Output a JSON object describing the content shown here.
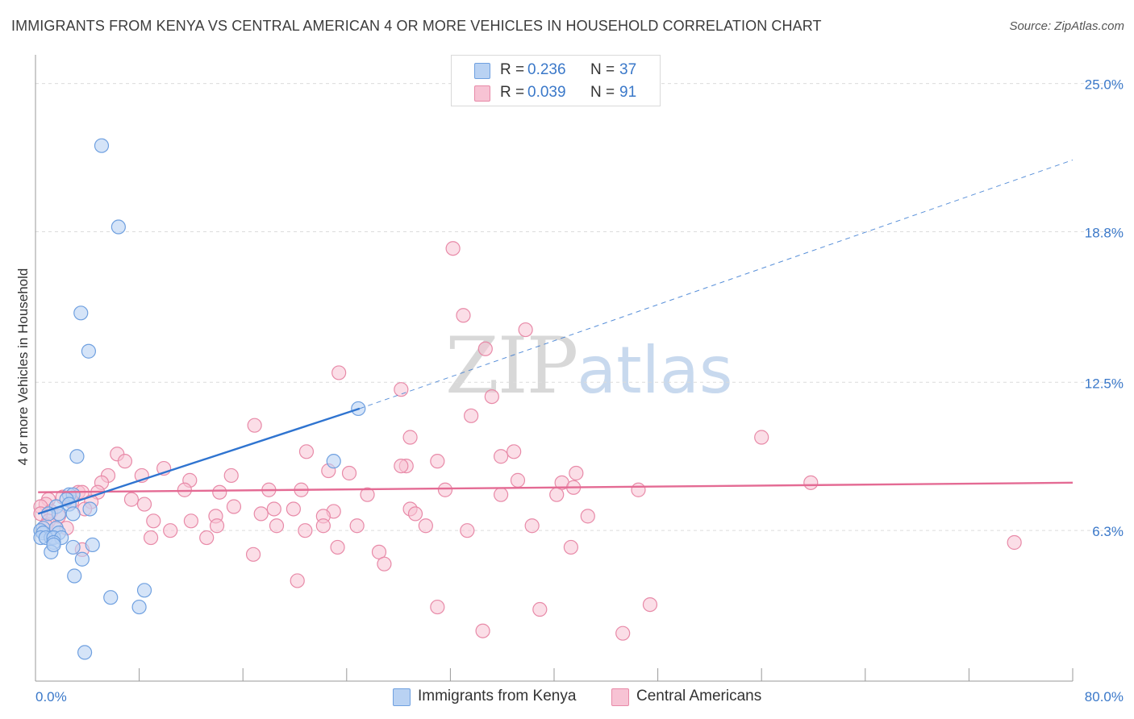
{
  "title": "IMMIGRANTS FROM KENYA VS CENTRAL AMERICAN 4 OR MORE VEHICLES IN HOUSEHOLD CORRELATION CHART",
  "source": "Source: ZipAtlas.com",
  "watermark": {
    "zip": "ZIP",
    "atlas": "atlas"
  },
  "colors": {
    "blue": "#6fa0e0",
    "blue_fill": "#b9d2f3",
    "blue_line": "#2f74d0",
    "pink": "#e88aa8",
    "pink_fill": "#f7c3d4",
    "pink_line": "#e46b94",
    "tick_label": "#3a78c9",
    "grid": "#dcdcdc"
  },
  "stats": [
    {
      "r_label": "R =",
      "r_value": "0.236",
      "n_label": "N =",
      "n_value": "37"
    },
    {
      "r_label": "R =",
      "r_value": "0.039",
      "n_label": "N =",
      "n_value": "91"
    }
  ],
  "legend": {
    "placement": "bottom-center",
    "items": [
      "Immigrants from Kenya",
      "Central Americans"
    ]
  },
  "chart_data": {
    "type": "scatter",
    "title": "IMMIGRANTS FROM KENYA VS CENTRAL AMERICAN 4 OR MORE VEHICLES IN HOUSEHOLD CORRELATION CHART",
    "xlabel": "",
    "ylabel": "4 or more Vehicles in Household",
    "xlim": [
      0,
      80
    ],
    "ylim": [
      0,
      26.2
    ],
    "x_tick_labels": [
      "0.0%",
      "80.0%"
    ],
    "y_ticks": [
      6.3,
      12.5,
      18.8,
      25.0
    ],
    "y_tick_labels": [
      "6.3%",
      "12.5%",
      "18.8%",
      "25.0%"
    ],
    "grid": true,
    "series": [
      {
        "name": "Immigrants from Kenya",
        "color": "#6fa0e0",
        "trend": {
          "x0": 0.2,
          "y0": 7.0,
          "x1": 25.0,
          "y1": 11.4,
          "dashed_to_x": 80.0,
          "dashed_to_y": 21.8
        },
        "points": [
          [
            5.1,
            22.4
          ],
          [
            6.4,
            19.0
          ],
          [
            3.5,
            15.4
          ],
          [
            4.1,
            13.8
          ],
          [
            24.9,
            11.4
          ],
          [
            3.2,
            9.4
          ],
          [
            23.0,
            9.2
          ],
          [
            2.6,
            7.8
          ],
          [
            2.9,
            7.8
          ],
          [
            2.4,
            7.6
          ],
          [
            2.6,
            7.4
          ],
          [
            1.6,
            7.3
          ],
          [
            4.2,
            7.2
          ],
          [
            1.8,
            7.0
          ],
          [
            2.9,
            7.0
          ],
          [
            1.0,
            7.0
          ],
          [
            0.6,
            6.4
          ],
          [
            0.4,
            6.3
          ],
          [
            1.6,
            6.4
          ],
          [
            1.8,
            6.2
          ],
          [
            0.6,
            6.2
          ],
          [
            0.4,
            6.0
          ],
          [
            1.2,
            6.0
          ],
          [
            0.8,
            6.0
          ],
          [
            1.4,
            6.0
          ],
          [
            2.0,
            6.0
          ],
          [
            1.4,
            5.8
          ],
          [
            4.4,
            5.7
          ],
          [
            2.9,
            5.6
          ],
          [
            1.2,
            5.4
          ],
          [
            3.6,
            5.1
          ],
          [
            3.0,
            4.4
          ],
          [
            8.4,
            3.8
          ],
          [
            5.8,
            3.5
          ],
          [
            8.0,
            3.1
          ],
          [
            3.8,
            1.2
          ],
          [
            1.4,
            5.7
          ]
        ]
      },
      {
        "name": "Central Americans",
        "color": "#e88aa8",
        "trend": {
          "x0": 0.2,
          "y0": 7.9,
          "x1": 80.0,
          "y1": 8.3
        },
        "points": [
          [
            32.2,
            18.1
          ],
          [
            33.0,
            15.3
          ],
          [
            37.8,
            14.7
          ],
          [
            34.7,
            13.9
          ],
          [
            23.4,
            12.9
          ],
          [
            28.2,
            12.2
          ],
          [
            35.2,
            11.9
          ],
          [
            33.6,
            11.1
          ],
          [
            16.9,
            10.7
          ],
          [
            28.9,
            10.2
          ],
          [
            56.0,
            10.2
          ],
          [
            36.9,
            9.6
          ],
          [
            6.3,
            9.5
          ],
          [
            20.9,
            9.6
          ],
          [
            35.9,
            9.4
          ],
          [
            31.0,
            9.2
          ],
          [
            6.9,
            9.2
          ],
          [
            28.6,
            9.0
          ],
          [
            28.2,
            9.0
          ],
          [
            9.9,
            8.9
          ],
          [
            22.6,
            8.8
          ],
          [
            41.7,
            8.7
          ],
          [
            24.2,
            8.7
          ],
          [
            5.6,
            8.6
          ],
          [
            8.2,
            8.6
          ],
          [
            15.1,
            8.6
          ],
          [
            11.9,
            8.4
          ],
          [
            37.2,
            8.4
          ],
          [
            40.6,
            8.3
          ],
          [
            59.8,
            8.3
          ],
          [
            5.1,
            8.3
          ],
          [
            41.5,
            8.1
          ],
          [
            18.0,
            8.0
          ],
          [
            46.5,
            8.0
          ],
          [
            11.5,
            8.0
          ],
          [
            20.5,
            8.0
          ],
          [
            31.6,
            8.0
          ],
          [
            14.2,
            7.9
          ],
          [
            3.3,
            7.9
          ],
          [
            3.6,
            7.9
          ],
          [
            4.8,
            7.9
          ],
          [
            25.6,
            7.8
          ],
          [
            35.9,
            7.8
          ],
          [
            40.2,
            7.8
          ],
          [
            1.0,
            7.6
          ],
          [
            2.1,
            7.7
          ],
          [
            7.4,
            7.6
          ],
          [
            4.3,
            7.5
          ],
          [
            2.8,
            7.5
          ],
          [
            8.4,
            7.4
          ],
          [
            15.3,
            7.3
          ],
          [
            19.9,
            7.2
          ],
          [
            18.4,
            7.2
          ],
          [
            28.9,
            7.2
          ],
          [
            3.8,
            7.2
          ],
          [
            0.8,
            7.4
          ],
          [
            0.4,
            7.3
          ],
          [
            1.2,
            7.1
          ],
          [
            23.0,
            7.1
          ],
          [
            0.4,
            7.0
          ],
          [
            1.8,
            6.9
          ],
          [
            29.3,
            7.0
          ],
          [
            17.4,
            7.0
          ],
          [
            13.9,
            6.9
          ],
          [
            22.2,
            6.9
          ],
          [
            42.6,
            6.9
          ],
          [
            1.0,
            6.7
          ],
          [
            12.0,
            6.7
          ],
          [
            9.1,
            6.7
          ],
          [
            0.8,
            6.5
          ],
          [
            24.8,
            6.5
          ],
          [
            18.6,
            6.5
          ],
          [
            22.2,
            6.5
          ],
          [
            30.1,
            6.5
          ],
          [
            14.0,
            6.5
          ],
          [
            38.3,
            6.5
          ],
          [
            1.6,
            6.4
          ],
          [
            2.4,
            6.4
          ],
          [
            33.3,
            6.3
          ],
          [
            20.8,
            6.3
          ],
          [
            10.4,
            6.3
          ],
          [
            8.9,
            6.0
          ],
          [
            13.2,
            6.0
          ],
          [
            23.3,
            5.6
          ],
          [
            41.3,
            5.6
          ],
          [
            75.5,
            5.8
          ],
          [
            3.6,
            5.5
          ],
          [
            26.5,
            5.4
          ],
          [
            16.8,
            5.3
          ],
          [
            26.9,
            4.9
          ],
          [
            20.2,
            4.2
          ]
        ]
      }
    ],
    "extra_low_points": [
      [
        31.0,
        3.1
      ],
      [
        38.9,
        3.0
      ],
      [
        47.4,
        3.2
      ],
      [
        34.5,
        2.1
      ],
      [
        45.3,
        2.0
      ]
    ]
  }
}
